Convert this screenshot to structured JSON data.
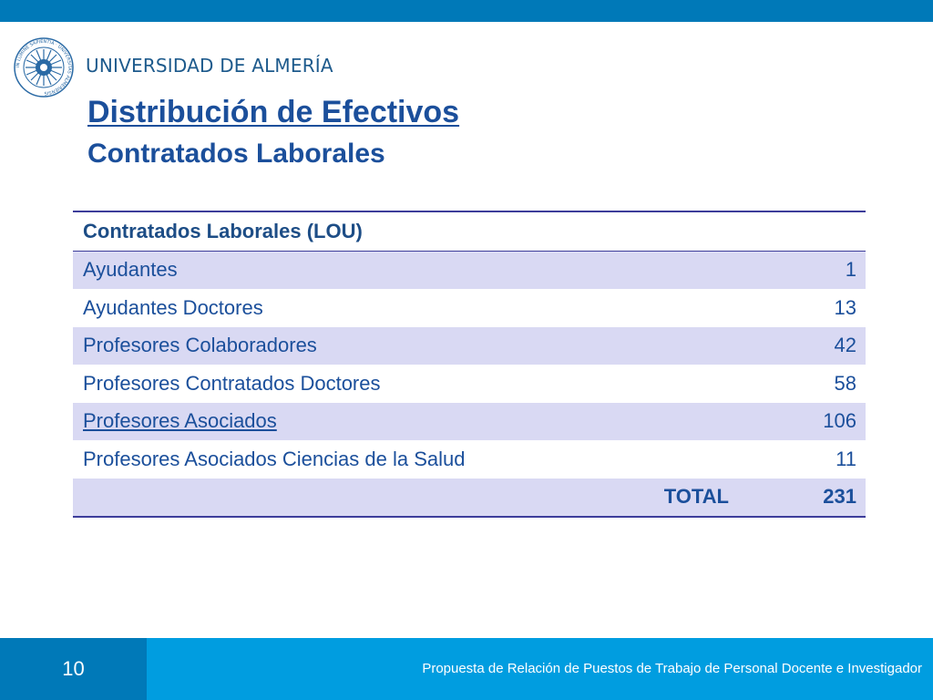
{
  "header": {
    "university_name": "UNIVERSIDAD DE ALMERÍA",
    "logo_text": "IN LUMINE SAPIENTIA · UNIVERSITAS ALMERIENSIS"
  },
  "slide": {
    "title": "Distribución de Efectivos",
    "subtitle": "Contratados Laborales"
  },
  "table": {
    "header": "Contratados Laborales (LOU)",
    "rows": [
      {
        "label": "Ayudantes",
        "value": "1"
      },
      {
        "label": "Ayudantes Doctores",
        "value": "13"
      },
      {
        "label": "Profesores Colaboradores",
        "value": "42"
      },
      {
        "label": "Profesores Contratados Doctores",
        "value": "58"
      },
      {
        "label": "Profesores Asociados",
        "value": "106"
      },
      {
        "label": "Profesores Asociados Ciencias de la Salud",
        "value": "11"
      }
    ],
    "total_label": "TOTAL",
    "total_value": "231"
  },
  "footer": {
    "page_number": "10",
    "text": "Propuesta de Relación de Puestos de Trabajo de Personal Docente e Investigador"
  },
  "colors": {
    "top_bar": "#0079b8",
    "footer": "#009de0",
    "title": "#1b4f9b",
    "row_shade": "#d9d9f3"
  }
}
